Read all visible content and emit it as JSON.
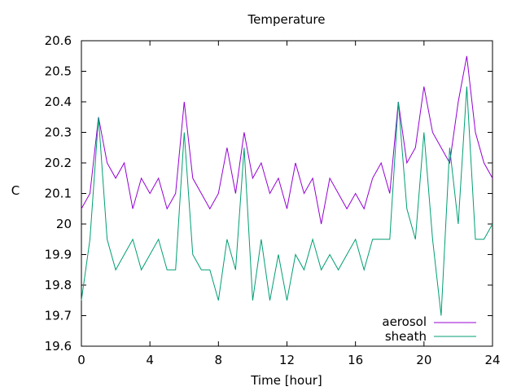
{
  "chart_data": {
    "type": "line",
    "title": "Temperature",
    "xlabel": "Time [hour]",
    "ylabel": "C",
    "xlim": [
      0,
      24
    ],
    "ylim": [
      19.6,
      20.6
    ],
    "x_ticks": [
      "0",
      "4",
      "8",
      "12",
      "16",
      "20",
      "24"
    ],
    "y_ticks": [
      "19.6",
      "19.7",
      "19.8",
      "19.9",
      "20",
      "20.1",
      "20.2",
      "20.3",
      "20.4",
      "20.5",
      "20.6"
    ],
    "grid": false,
    "legend_position": "bottom-right",
    "series": [
      {
        "name": "aerosol",
        "color": "#9400d3",
        "x": [
          0,
          0.5,
          1,
          1.5,
          2,
          2.5,
          3,
          3.5,
          4,
          4.5,
          5,
          5.5,
          6,
          6.5,
          7,
          7.5,
          8,
          8.5,
          9,
          9.5,
          10,
          10.5,
          11,
          11.5,
          12,
          12.5,
          13,
          13.5,
          14,
          14.5,
          15,
          15.5,
          16,
          16.5,
          17,
          17.5,
          18,
          18.5,
          19,
          19.5,
          20,
          20.5,
          21,
          21.5,
          22,
          22.5,
          23,
          23.5,
          24
        ],
        "values": [
          20.05,
          20.1,
          20.35,
          20.2,
          20.15,
          20.2,
          20.05,
          20.15,
          20.1,
          20.15,
          20.05,
          20.1,
          20.4,
          20.15,
          20.1,
          20.05,
          20.1,
          20.25,
          20.1,
          20.3,
          20.15,
          20.2,
          20.1,
          20.15,
          20.05,
          20.2,
          20.1,
          20.15,
          20.0,
          20.15,
          20.1,
          20.05,
          20.1,
          20.05,
          20.15,
          20.2,
          20.1,
          20.4,
          20.2,
          20.25,
          20.45,
          20.3,
          20.25,
          20.2,
          20.4,
          20.55,
          20.3,
          20.2,
          20.15
        ]
      },
      {
        "name": "sheath",
        "color": "#009e73",
        "x": [
          0,
          0.5,
          1,
          1.5,
          2,
          2.5,
          3,
          3.5,
          4,
          4.5,
          5,
          5.5,
          6,
          6.5,
          7,
          7.5,
          8,
          8.5,
          9,
          9.5,
          10,
          10.5,
          11,
          11.5,
          12,
          12.5,
          13,
          13.5,
          14,
          14.5,
          15,
          15.5,
          16,
          16.5,
          17,
          17.5,
          18,
          18.5,
          19,
          19.5,
          20,
          20.5,
          21,
          21.5,
          22,
          22.5,
          23,
          23.5,
          24
        ],
        "values": [
          19.75,
          19.95,
          20.35,
          19.95,
          19.85,
          19.9,
          19.95,
          19.85,
          19.9,
          19.95,
          19.85,
          19.85,
          20.3,
          19.9,
          19.85,
          19.85,
          19.75,
          19.95,
          19.85,
          20.25,
          19.75,
          19.95,
          19.75,
          19.9,
          19.75,
          19.9,
          19.85,
          19.95,
          19.85,
          19.9,
          19.85,
          19.9,
          19.95,
          19.85,
          19.95,
          19.95,
          19.95,
          20.4,
          20.05,
          19.95,
          20.3,
          19.95,
          19.7,
          20.25,
          20.0,
          20.45,
          19.95,
          19.95,
          20.0
        ]
      }
    ]
  }
}
